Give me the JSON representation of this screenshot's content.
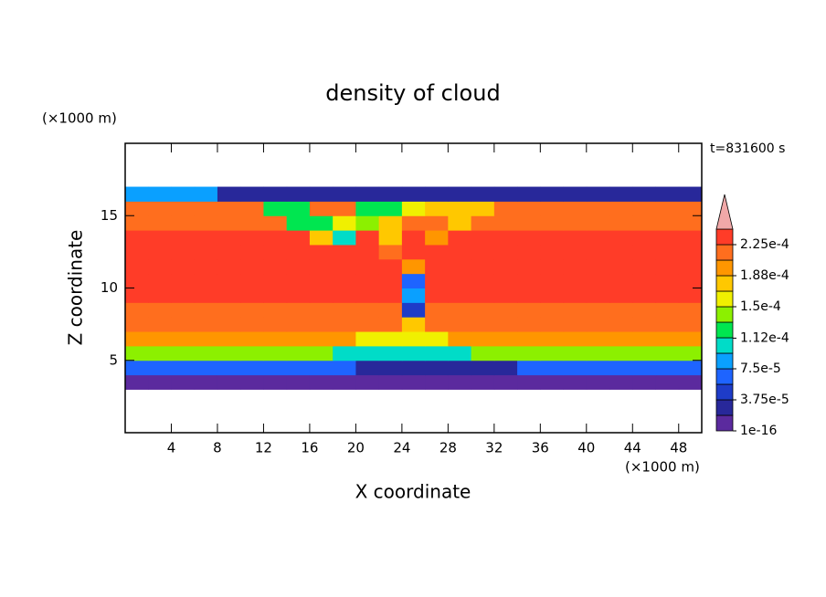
{
  "chart_data": {
    "type": "contour",
    "title": "density of cloud",
    "x_label": "X coordinate",
    "y_label": "Z coordinate",
    "x_unit": "(×1000 m)",
    "y_unit": "(×1000 m)",
    "annotation": "t=831600 s",
    "x": [
      1,
      3,
      5,
      7,
      9,
      11,
      13,
      15,
      17,
      19,
      21,
      23,
      25,
      27,
      29,
      31,
      33,
      35,
      37,
      39,
      41,
      43,
      45,
      47,
      49
    ],
    "y": [
      3.5,
      4.5,
      5.5,
      6.5,
      7.5,
      8.5,
      9.5,
      10.5,
      11.5,
      12.5,
      13.5,
      14.5,
      15.5,
      16.5
    ],
    "z": [
      [
        1e-16,
        1e-16,
        1e-16,
        1e-16,
        1e-16,
        1e-16,
        1e-16,
        1e-16,
        1e-16,
        1e-16,
        1e-16,
        1e-16,
        1e-16,
        1e-16,
        1e-16,
        1e-16,
        1e-16,
        1e-16,
        1e-16,
        1e-16,
        1e-16,
        1e-16,
        1e-16,
        1e-16,
        1e-16
      ],
      [
        6e-05,
        6e-05,
        6e-05,
        6e-05,
        6e-05,
        6e-05,
        6e-05,
        6e-05,
        6e-05,
        6e-05,
        3e-05,
        3e-05,
        3e-05,
        3e-05,
        3e-05,
        3e-05,
        3e-05,
        6e-05,
        6e-05,
        6e-05,
        6e-05,
        6e-05,
        6e-05,
        6e-05,
        6e-05
      ],
      [
        0.00014,
        0.00014,
        0.00014,
        0.00014,
        0.00014,
        0.00014,
        0.00014,
        0.00014,
        0.00014,
        0.0001,
        0.0001,
        0.0001,
        0.0001,
        0.0001,
        0.0001,
        0.00014,
        0.00014,
        0.00014,
        0.00014,
        0.00014,
        0.00014,
        0.00014,
        0.00014,
        0.00014,
        0.00014
      ],
      [
        0.00019,
        0.00019,
        0.00019,
        0.00019,
        0.00019,
        0.00019,
        0.00019,
        0.00019,
        0.00019,
        0.00019,
        0.00016,
        0.00016,
        0.00016,
        0.00016,
        0.00019,
        0.00019,
        0.00019,
        0.00019,
        0.00019,
        0.00019,
        0.00019,
        0.00019,
        0.00019,
        0.00019,
        0.00019
      ],
      [
        0.00021,
        0.00021,
        0.00021,
        0.00021,
        0.00021,
        0.00021,
        0.00021,
        0.00021,
        0.00021,
        0.00021,
        0.00021,
        0.00021,
        0.00017,
        0.00021,
        0.00021,
        0.00021,
        0.00021,
        0.00021,
        0.00021,
        0.00021,
        0.00021,
        0.00021,
        0.00021,
        0.00021,
        0.00021
      ],
      [
        0.00022,
        0.00022,
        0.00022,
        0.00022,
        0.00022,
        0.00022,
        0.00022,
        0.00022,
        0.00022,
        0.00022,
        0.00022,
        0.00022,
        5e-05,
        0.00022,
        0.00022,
        0.00022,
        0.00022,
        0.00022,
        0.00022,
        0.00022,
        0.00022,
        0.00022,
        0.00022,
        0.00022,
        0.00022
      ],
      [
        0.00023,
        0.00023,
        0.00023,
        0.00023,
        0.00023,
        0.00023,
        0.00023,
        0.00023,
        0.00023,
        0.00023,
        0.00023,
        0.00023,
        9e-05,
        0.00023,
        0.00023,
        0.00023,
        0.00023,
        0.00023,
        0.00023,
        0.00023,
        0.00023,
        0.00023,
        0.00023,
        0.00023,
        0.00023
      ],
      [
        0.00023,
        0.00023,
        0.00023,
        0.00023,
        0.00023,
        0.00023,
        0.00023,
        0.00023,
        0.00023,
        0.00023,
        0.00023,
        0.00023,
        7e-05,
        0.00023,
        0.00023,
        0.00023,
        0.00023,
        0.00023,
        0.00023,
        0.00023,
        0.00023,
        0.00023,
        0.00023,
        0.00023,
        0.00023
      ],
      [
        0.00023,
        0.00023,
        0.00023,
        0.00023,
        0.00023,
        0.00023,
        0.00023,
        0.00023,
        0.00023,
        0.00023,
        0.00023,
        0.00023,
        0.0002,
        0.00023,
        0.00023,
        0.00023,
        0.00023,
        0.00023,
        0.00023,
        0.00023,
        0.00023,
        0.00023,
        0.00023,
        0.00023,
        0.00023
      ],
      [
        0.00023,
        0.00023,
        0.00023,
        0.00023,
        0.00023,
        0.00023,
        0.00023,
        0.00023,
        0.00023,
        0.00023,
        0.00023,
        0.00021,
        0.00023,
        0.00023,
        0.00023,
        0.00023,
        0.00023,
        0.00023,
        0.00023,
        0.00023,
        0.00023,
        0.00023,
        0.00023,
        0.00023,
        0.00023
      ],
      [
        0.00023,
        0.00023,
        0.00023,
        0.00023,
        0.00023,
        0.00023,
        0.00023,
        0.00023,
        0.00018,
        0.00011,
        0.00023,
        0.00017,
        0.00023,
        0.0002,
        0.00023,
        0.00023,
        0.00023,
        0.00023,
        0.00023,
        0.00023,
        0.00023,
        0.00023,
        0.00023,
        0.00023,
        0.00023
      ],
      [
        0.00022,
        0.00022,
        0.00022,
        0.00022,
        0.00022,
        0.00022,
        0.00022,
        0.00012,
        0.00012,
        0.00016,
        0.00015,
        0.00018,
        0.00022,
        0.00022,
        0.00017,
        0.00022,
        0.00022,
        0.00022,
        0.00022,
        0.00022,
        0.00022,
        0.00022,
        0.00022,
        0.00022,
        0.00022
      ],
      [
        0.00021,
        0.00021,
        0.00021,
        0.00021,
        0.00021,
        0.00021,
        0.00013,
        0.00013,
        0.00021,
        0.00021,
        0.00013,
        0.00013,
        0.00016,
        0.00017,
        0.00017,
        0.00017,
        0.00021,
        0.00021,
        0.00021,
        0.00021,
        0.00021,
        0.00021,
        0.00021,
        0.00021,
        0.00021
      ],
      [
        9e-05,
        9e-05,
        9e-05,
        9e-05,
        3e-05,
        3e-05,
        3e-05,
        3e-05,
        3e-05,
        3e-05,
        3e-05,
        3e-05,
        3e-05,
        3e-05,
        3e-05,
        3e-05,
        3e-05,
        3e-05,
        3e-05,
        3e-05,
        3e-05,
        3e-05,
        3e-05,
        3e-05,
        3e-05
      ]
    ],
    "xlim": [
      0,
      50
    ],
    "ylim": [
      0,
      20
    ],
    "xticks": [
      4,
      8,
      12,
      16,
      20,
      24,
      28,
      32,
      36,
      40,
      44,
      48
    ],
    "yticks": [
      5,
      10,
      15
    ],
    "colorbar": {
      "clim": [
        1e-16,
        0.00024375
      ],
      "colors": [
        "#5b2a9e",
        "#28289a",
        "#1e3cc8",
        "#1e64ff",
        "#0aa0ff",
        "#00dcc8",
        "#00e650",
        "#8cf000",
        "#f0f000",
        "#ffc800",
        "#ff9600",
        "#ff6e1e",
        "#ff3c28"
      ],
      "extend_color": "#f0a8a8",
      "ticks": [
        1e-16,
        {
          "value": 3.75e-05,
          "label": "3.75e-5"
        },
        {
          "value": 7.5e-05,
          "label": "7.5e-5"
        },
        {
          "value": 0.000112,
          "label": "1.12e-4"
        },
        {
          "value": 0.00015,
          "label": "1.5e-4"
        },
        {
          "value": 0.0001875,
          "label": "1.88e-4"
        },
        {
          "value": 0.000225,
          "label": "2.25e-4"
        }
      ]
    }
  }
}
